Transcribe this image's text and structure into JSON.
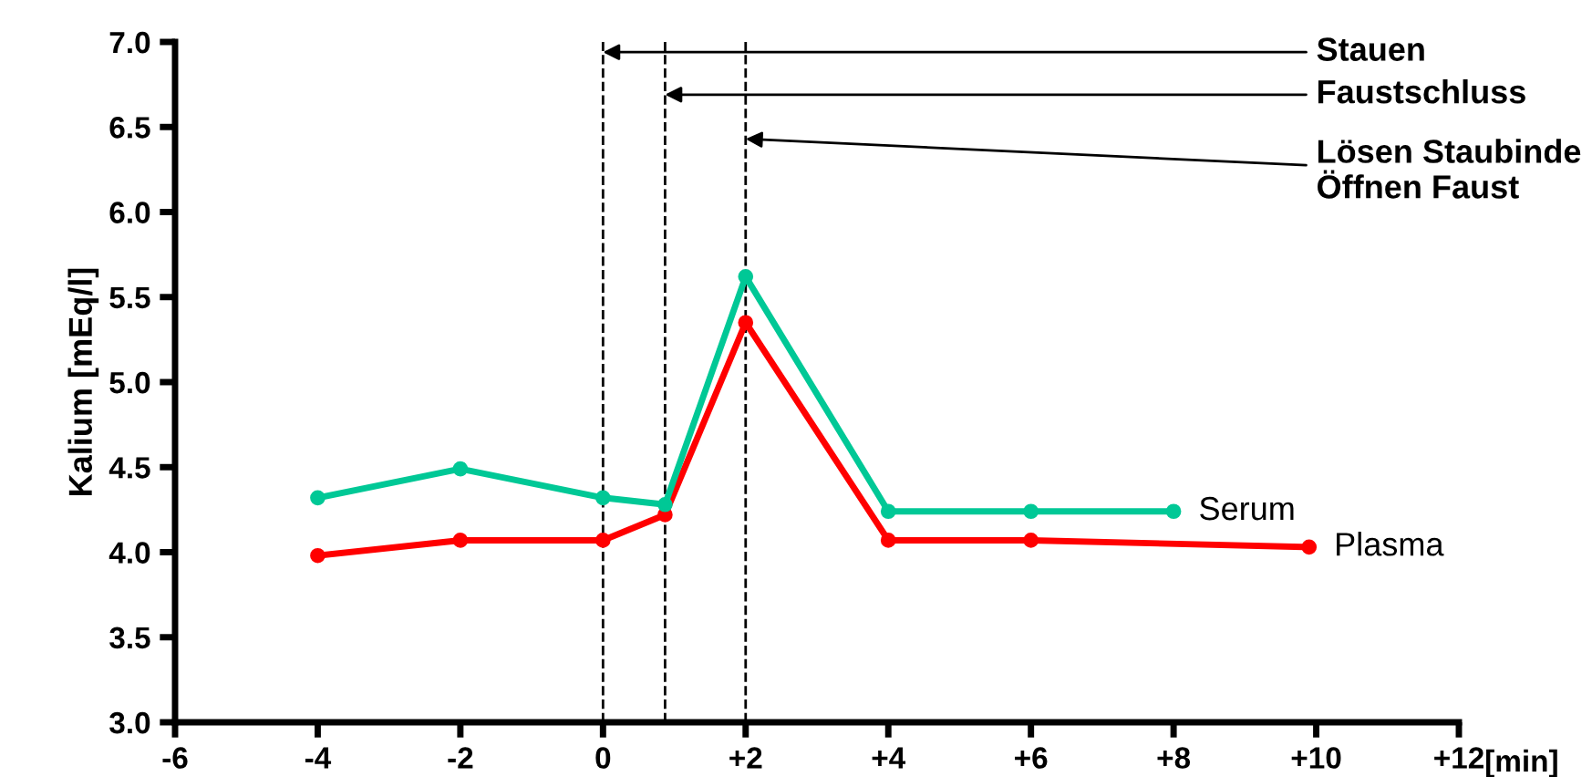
{
  "chart_data": {
    "type": "line",
    "xlabel": "[min]",
    "ylabel": "Kalium [mEq/l]",
    "xlim": [
      -6,
      12
    ],
    "ylim": [
      3.0,
      7.0
    ],
    "xticks": [
      -6,
      -4,
      -2,
      0,
      {
        "value": 2,
        "label": "+2"
      },
      {
        "value": 4,
        "label": "+4"
      },
      {
        "value": 6,
        "label": "+6"
      },
      {
        "value": 8,
        "label": "+8"
      },
      {
        "value": 10,
        "label": "+10"
      },
      {
        "value": 12,
        "label": "+12"
      }
    ],
    "yticks": [
      {
        "value": 3.0,
        "label": "3.0"
      },
      3.5,
      {
        "value": 4.0,
        "label": "4.0"
      },
      4.5,
      {
        "value": 5.0,
        "label": "5.0"
      },
      5.5,
      {
        "value": 6.0,
        "label": "6.0"
      },
      6.5,
      {
        "value": 7.0,
        "label": "7.0"
      }
    ],
    "series": [
      {
        "name": "Serum",
        "color": "#00c896",
        "x": [
          -4,
          -2,
          0,
          0.87,
          2,
          4,
          6,
          8
        ],
        "values": [
          4.32,
          4.49,
          4.32,
          4.28,
          5.62,
          4.24,
          4.24,
          4.24
        ]
      },
      {
        "name": "Plasma",
        "color": "#ff0000",
        "x": [
          -4,
          -2,
          0,
          0.87,
          2,
          4,
          6,
          9.9
        ],
        "values": [
          3.98,
          4.07,
          4.07,
          4.22,
          5.35,
          4.07,
          4.07,
          4.03
        ]
      }
    ],
    "ref_lines": [
      {
        "axis": "x",
        "value": 0,
        "color": "#000000",
        "line_style": "dashed"
      },
      {
        "axis": "x",
        "value": 0.87,
        "color": "#000000",
        "line_style": "dashed"
      },
      {
        "axis": "x",
        "value": 2,
        "color": "#000000",
        "line_style": "dashed"
      }
    ],
    "annotations": [
      {
        "text": "Stauen",
        "x": 0,
        "y": 6.94
      },
      {
        "text": "Faustschluss",
        "x": 0.87,
        "y": 6.69
      },
      {
        "text": "Lösen Staubinde\nÖffnen Faust",
        "x": 2,
        "y": 6.43
      }
    ],
    "marker": "circle",
    "line_style": "solid",
    "grid": false,
    "legend": false
  }
}
